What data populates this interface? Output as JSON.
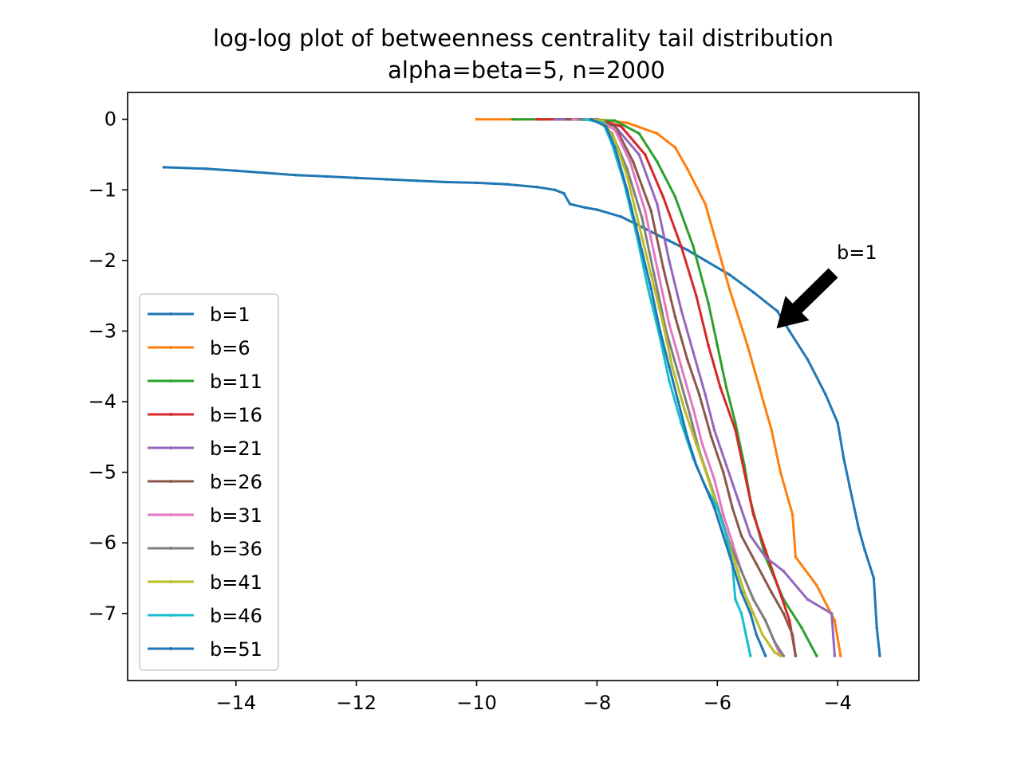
{
  "chart_data": {
    "type": "line",
    "title": "log-log plot of betweenness centrality tail distribution",
    "subtitle": "alpha=beta=5, n=2000",
    "xlabel": "",
    "ylabel": "",
    "xlim": [
      -15.8,
      -2.65
    ],
    "ylim": [
      -7.95,
      0.38
    ],
    "x_ticks": [
      -14,
      -12,
      -10,
      -8,
      -6,
      -4
    ],
    "x_tick_labels": [
      "−14",
      "−12",
      "−10",
      "−8",
      "−6",
      "−4"
    ],
    "y_ticks": [
      0,
      -1,
      -2,
      -3,
      -4,
      -5,
      -6,
      -7
    ],
    "y_tick_labels": [
      "0",
      "−1",
      "−2",
      "−3",
      "−4",
      "−5",
      "−6",
      "−7"
    ],
    "grid": false,
    "legend_position": "lower left",
    "annotation": {
      "text": "b=1",
      "arrow_to": [
        -5.0,
        -2.95
      ]
    },
    "series": [
      {
        "name": "b=1",
        "color": "#1f77b4",
        "x": [
          -15.2,
          -14.5,
          -14.0,
          -13.5,
          -13.0,
          -12.5,
          -12.0,
          -11.5,
          -11.0,
          -10.5,
          -10.0,
          -9.5,
          -9.0,
          -8.7,
          -8.55,
          -8.45,
          -8.2,
          -8.0,
          -7.6,
          -7.2,
          -6.8,
          -6.5,
          -6.2,
          -5.8,
          -5.4,
          -5.0,
          -4.8,
          -4.5,
          -4.2,
          -4.0,
          -3.9,
          -3.8,
          -3.65,
          -3.55,
          -3.4,
          -3.35,
          -3.3
        ],
        "y": [
          -0.68,
          -0.7,
          -0.73,
          -0.76,
          -0.79,
          -0.81,
          -0.83,
          -0.85,
          -0.87,
          -0.89,
          -0.9,
          -0.92,
          -0.96,
          -1.0,
          -1.05,
          -1.2,
          -1.25,
          -1.28,
          -1.38,
          -1.55,
          -1.72,
          -1.85,
          -2.0,
          -2.2,
          -2.45,
          -2.72,
          -3.0,
          -3.4,
          -3.9,
          -4.3,
          -4.8,
          -5.2,
          -5.8,
          -6.1,
          -6.5,
          -7.2,
          -7.6
        ]
      },
      {
        "name": "b=6",
        "color": "#ff7f0e",
        "x": [
          -10.0,
          -9.0,
          -8.0,
          -7.5,
          -7.0,
          -6.7,
          -6.5,
          -6.2,
          -6.0,
          -5.8,
          -5.5,
          -5.3,
          -5.1,
          -4.95,
          -4.75,
          -4.7,
          -4.35,
          -4.05,
          -3.95
        ],
        "y": [
          0.0,
          0.0,
          0.0,
          -0.05,
          -0.2,
          -0.4,
          -0.7,
          -1.2,
          -1.8,
          -2.4,
          -3.2,
          -3.8,
          -4.4,
          -5.0,
          -5.6,
          -6.2,
          -6.6,
          -7.1,
          -7.6
        ]
      },
      {
        "name": "b=11",
        "color": "#2ca02c",
        "x": [
          -9.4,
          -8.5,
          -7.7,
          -7.3,
          -7.0,
          -6.7,
          -6.4,
          -6.15,
          -6.0,
          -5.85,
          -5.7,
          -5.55,
          -5.45,
          -5.2,
          -4.9,
          -4.6,
          -4.35
        ],
        "y": [
          0.0,
          0.0,
          -0.02,
          -0.2,
          -0.6,
          -1.1,
          -1.8,
          -2.6,
          -3.2,
          -3.8,
          -4.3,
          -4.9,
          -5.4,
          -6.2,
          -6.8,
          -7.2,
          -7.6
        ]
      },
      {
        "name": "b=16",
        "color": "#d62728",
        "x": [
          -9.0,
          -8.0,
          -7.6,
          -7.2,
          -6.9,
          -6.6,
          -6.35,
          -6.15,
          -5.95,
          -5.7,
          -5.55,
          -5.4,
          -5.2,
          -5.0,
          -4.8,
          -4.7
        ],
        "y": [
          0.0,
          0.0,
          -0.1,
          -0.5,
          -1.1,
          -1.8,
          -2.5,
          -3.2,
          -3.8,
          -4.4,
          -5.0,
          -5.6,
          -6.1,
          -6.6,
          -7.1,
          -7.6
        ]
      },
      {
        "name": "b=21",
        "color": "#9467bd",
        "x": [
          -8.7,
          -8.0,
          -7.7,
          -7.3,
          -7.0,
          -6.8,
          -6.6,
          -6.4,
          -6.2,
          -6.05,
          -5.85,
          -5.65,
          -5.45,
          -5.2,
          -4.9,
          -4.5,
          -4.1,
          -4.05
        ],
        "y": [
          0.0,
          0.0,
          -0.1,
          -0.5,
          -1.2,
          -2.0,
          -2.7,
          -3.3,
          -3.9,
          -4.4,
          -4.9,
          -5.4,
          -5.9,
          -6.2,
          -6.4,
          -6.8,
          -7.0,
          -7.6
        ]
      },
      {
        "name": "b=26",
        "color": "#8c564b",
        "x": [
          -8.5,
          -8.0,
          -7.7,
          -7.4,
          -7.1,
          -6.9,
          -6.7,
          -6.5,
          -6.3,
          -6.1,
          -5.9,
          -5.75,
          -5.6,
          -5.35,
          -5.1,
          -4.9,
          -4.75,
          -4.7
        ],
        "y": [
          0.0,
          0.0,
          -0.1,
          -0.6,
          -1.3,
          -2.1,
          -2.8,
          -3.4,
          -3.9,
          -4.5,
          -5.0,
          -5.5,
          -5.9,
          -6.3,
          -6.7,
          -7.0,
          -7.3,
          -7.6
        ]
      },
      {
        "name": "b=31",
        "color": "#e377c2",
        "x": [
          -8.4,
          -8.0,
          -7.7,
          -7.45,
          -7.2,
          -7.0,
          -6.8,
          -6.6,
          -6.4,
          -6.25,
          -6.05,
          -5.9,
          -5.75,
          -5.6,
          -5.4,
          -5.2,
          -5.05,
          -4.95
        ],
        "y": [
          0.0,
          0.0,
          -0.15,
          -0.6,
          -1.3,
          -2.1,
          -2.9,
          -3.5,
          -4.1,
          -4.6,
          -5.1,
          -5.6,
          -6.0,
          -6.4,
          -6.8,
          -7.1,
          -7.4,
          -7.6
        ]
      },
      {
        "name": "b=36",
        "color": "#7f7f7f",
        "x": [
          -8.3,
          -8.0,
          -7.75,
          -7.5,
          -7.25,
          -7.05,
          -6.85,
          -6.65,
          -6.45,
          -6.3,
          -6.1,
          -5.95,
          -5.8,
          -5.6,
          -5.4,
          -5.2,
          -5.05,
          -4.9
        ],
        "y": [
          0.0,
          0.0,
          -0.2,
          -0.7,
          -1.4,
          -2.2,
          -3.0,
          -3.6,
          -4.2,
          -4.7,
          -5.2,
          -5.6,
          -6.0,
          -6.4,
          -6.8,
          -7.1,
          -7.4,
          -7.6
        ]
      },
      {
        "name": "b=41",
        "color": "#bcbd22",
        "x": [
          -8.2,
          -7.9,
          -7.7,
          -7.5,
          -7.3,
          -7.1,
          -6.9,
          -6.75,
          -6.55,
          -6.35,
          -6.15,
          -6.0,
          -5.85,
          -5.7,
          -5.55,
          -5.4,
          -5.25,
          -5.05,
          -4.95
        ],
        "y": [
          0.0,
          -0.02,
          -0.3,
          -0.8,
          -1.5,
          -2.2,
          -2.9,
          -3.5,
          -4.1,
          -4.6,
          -5.1,
          -5.5,
          -5.9,
          -6.3,
          -6.7,
          -7.0,
          -7.3,
          -7.55,
          -7.6
        ]
      },
      {
        "name": "b=46",
        "color": "#17becf",
        "x": [
          -8.2,
          -7.9,
          -7.75,
          -7.55,
          -7.35,
          -7.15,
          -6.95,
          -6.8,
          -6.6,
          -6.4,
          -6.2,
          -6.0,
          -5.85,
          -5.75,
          -5.7,
          -5.6,
          -5.5,
          -5.45
        ],
        "y": [
          0.0,
          -0.05,
          -0.35,
          -0.9,
          -1.6,
          -2.4,
          -3.1,
          -3.7,
          -4.3,
          -4.8,
          -5.2,
          -5.5,
          -5.9,
          -6.3,
          -6.8,
          -7.0,
          -7.4,
          -7.6
        ]
      },
      {
        "name": "b=51",
        "color": "#1f77b4",
        "x": [
          -8.1,
          -7.85,
          -7.7,
          -7.5,
          -7.3,
          -7.1,
          -6.95,
          -6.8,
          -6.65,
          -6.5,
          -6.35,
          -6.2,
          -6.05,
          -5.9,
          -5.75,
          -5.6,
          -5.45,
          -5.35,
          -5.25,
          -5.2
        ],
        "y": [
          0.0,
          -0.1,
          -0.4,
          -1.0,
          -1.7,
          -2.4,
          -3.0,
          -3.5,
          -4.0,
          -4.5,
          -4.9,
          -5.2,
          -5.5,
          -5.9,
          -6.3,
          -6.7,
          -7.0,
          -7.3,
          -7.5,
          -7.6
        ]
      }
    ]
  }
}
